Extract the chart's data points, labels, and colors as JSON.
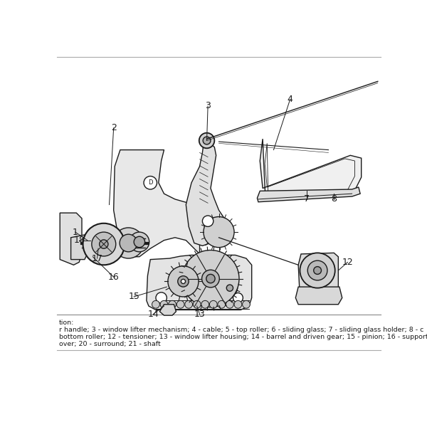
{
  "bg_color": "#ffffff",
  "border_color": "#888888",
  "figsize": [
    6.0,
    6.0
  ],
  "dpi": 100,
  "caption_line1": "tion:",
  "caption_line2": "r handle; 3 - window lifter mechanism; 4 - cable; 5 - top roller; 6 - sliding glass; 7 - sliding glass holder; 8 - c",
  "caption_line3": "bottom roller; 12 - tensioner; 13 - window lifter housing; 14 - barrel and driven gear; 15 - pinion; 16 - support",
  "caption_line4": "over; 20 - surround; 21 - shaft",
  "lw_main": 1.0,
  "lw_thin": 0.6,
  "color_dark": "#1a1a1a",
  "color_fill": "#f0f0f0",
  "color_mid": "#d0d0d0",
  "color_dark_part": "#b0b0b0"
}
